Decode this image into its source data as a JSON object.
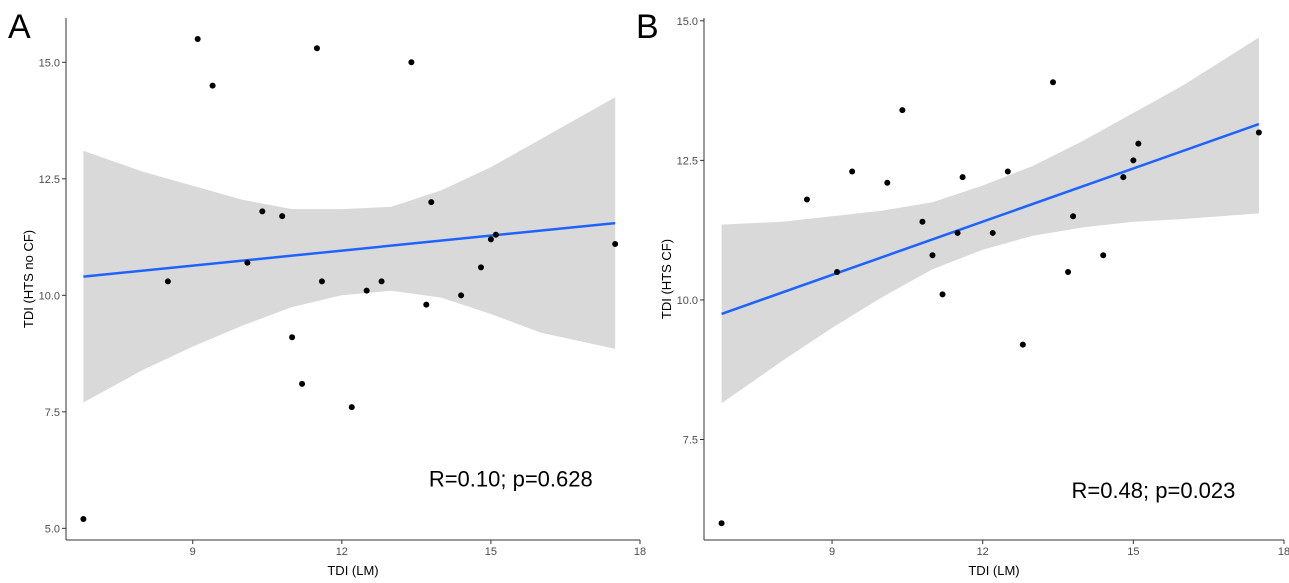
{
  "chart_data": [
    {
      "type": "scatter",
      "panel_label": "A",
      "xlabel": "TDI (LM)",
      "ylabel": "TDI (HTS no CF)",
      "xlim": [
        6.45,
        18.0
      ],
      "ylim": [
        4.75,
        15.95
      ],
      "xticks": [
        9,
        12,
        15,
        18
      ],
      "xtick_labels": [
        "9",
        "12",
        "15",
        "18"
      ],
      "yticks": [
        5.0,
        7.5,
        10.0,
        12.5,
        15.0
      ],
      "ytick_labels": [
        "5.0",
        "7.5",
        "10.0",
        "12.5",
        "15.0"
      ],
      "points": {
        "x": [
          6.8,
          8.5,
          9.1,
          9.4,
          10.1,
          10.4,
          10.8,
          11.0,
          11.2,
          11.5,
          11.6,
          12.2,
          12.5,
          12.8,
          13.4,
          13.7,
          13.8,
          14.4,
          14.8,
          15.0,
          15.1,
          17.5
        ],
        "y": [
          5.2,
          10.3,
          15.5,
          14.5,
          10.7,
          11.8,
          11.7,
          9.1,
          8.1,
          15.3,
          10.3,
          7.6,
          10.1,
          10.3,
          15.0,
          9.8,
          12.0,
          10.0,
          10.6,
          11.2,
          11.3,
          11.1
        ]
      },
      "fit": {
        "x": [
          6.8,
          17.5
        ],
        "y": [
          10.4,
          11.55
        ]
      },
      "ci": {
        "x": [
          6.8,
          8.0,
          9.0,
          10.0,
          11.0,
          12.0,
          13.0,
          14.0,
          15.0,
          16.0,
          17.5
        ],
        "lower": [
          7.7,
          8.4,
          8.9,
          9.35,
          9.75,
          10.0,
          10.1,
          9.95,
          9.6,
          9.2,
          8.85
        ],
        "upper": [
          13.1,
          12.65,
          12.35,
          12.05,
          11.85,
          11.85,
          11.9,
          12.25,
          12.75,
          13.35,
          14.25
        ]
      },
      "annotation": "R=0.10; p=0.628",
      "annotation_pos": {
        "x": 15.4,
        "y": 5.9
      },
      "colors": {
        "line": "#1f63ff",
        "band": "#d9d9d9",
        "point": "#000000",
        "axis": "#333333"
      }
    },
    {
      "type": "scatter",
      "panel_label": "B",
      "xlabel": "TDI (LM)",
      "ylabel": "TDI (HTS CF)",
      "xlim": [
        6.45,
        18.0
      ],
      "ylim": [
        5.7,
        15.05
      ],
      "xticks": [
        9,
        12,
        15,
        18
      ],
      "xtick_labels": [
        "9",
        "12",
        "15",
        "18"
      ],
      "yticks": [
        7.5,
        10.0,
        12.5,
        15.0
      ],
      "ytick_labels": [
        "7.5",
        "10.0",
        "12.5",
        "15.0"
      ],
      "points": {
        "x": [
          6.8,
          8.5,
          9.1,
          9.4,
          10.1,
          10.4,
          10.8,
          11.0,
          11.2,
          11.5,
          11.6,
          12.2,
          12.5,
          12.8,
          13.4,
          13.7,
          13.8,
          14.4,
          14.8,
          15.0,
          15.1,
          17.5
        ],
        "y": [
          6.0,
          11.8,
          10.5,
          12.3,
          12.1,
          13.4,
          11.4,
          10.8,
          10.1,
          11.2,
          12.2,
          11.2,
          12.3,
          9.2,
          13.9,
          10.5,
          11.5,
          10.8,
          12.2,
          12.5,
          12.8,
          13.0
        ]
      },
      "fit": {
        "x": [
          6.8,
          17.5
        ],
        "y": [
          9.75,
          13.15
        ]
      },
      "ci": {
        "x": [
          6.8,
          8.0,
          9.0,
          10.0,
          11.0,
          12.0,
          13.0,
          14.0,
          15.0,
          16.0,
          17.5
        ],
        "lower": [
          8.15,
          8.9,
          9.5,
          10.05,
          10.55,
          10.9,
          11.15,
          11.3,
          11.4,
          11.45,
          11.55
        ],
        "upper": [
          11.35,
          11.4,
          11.5,
          11.6,
          11.75,
          12.05,
          12.4,
          12.85,
          13.35,
          13.85,
          14.7
        ]
      },
      "annotation": "R=0.48; p=0.023",
      "annotation_pos": {
        "x": 15.4,
        "y": 6.45
      },
      "colors": {
        "line": "#1f63ff",
        "band": "#d9d9d9",
        "point": "#000000",
        "axis": "#333333"
      }
    }
  ]
}
